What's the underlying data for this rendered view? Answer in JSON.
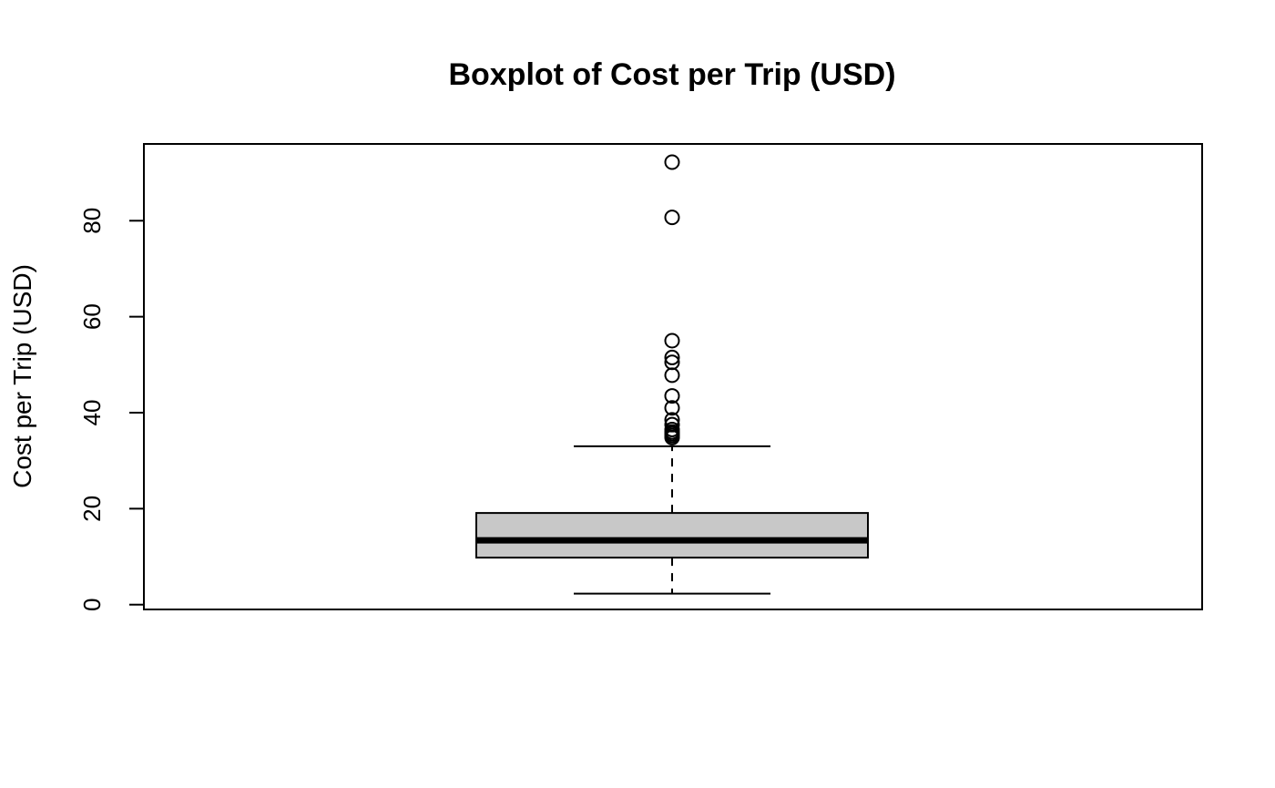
{
  "chart_data": {
    "type": "boxplot",
    "title": "Boxplot of Cost per Trip (USD)",
    "xlabel": "",
    "ylabel": "Cost per Trip (USD)",
    "ylim": [
      -1,
      96
    ],
    "yticks": [
      0,
      20,
      40,
      60,
      80
    ],
    "grid": false,
    "box": {
      "whisker_low": 2.3,
      "q1": 9.8,
      "median": 13.4,
      "q3": 19.1,
      "whisker_high": 33.0,
      "outliers": [
        34.8,
        35.2,
        35.6,
        36.0,
        36.5,
        37.5,
        38.5,
        41.0,
        43.5,
        47.8,
        50.5,
        51.5,
        55.0,
        80.7,
        92.2
      ]
    },
    "colors": {
      "box_fill": "#c8c8c8",
      "line": "#000000"
    }
  }
}
